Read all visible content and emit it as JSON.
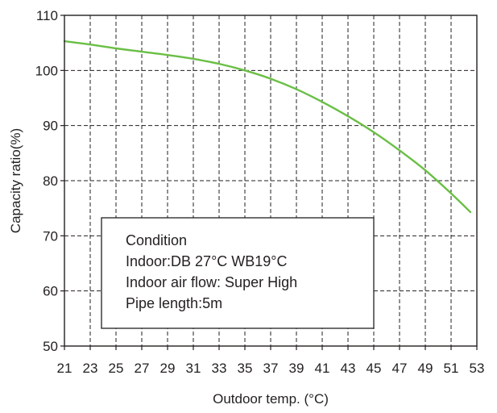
{
  "chart_data": {
    "type": "line",
    "xlabel": "Outdoor temp. (°C)",
    "ylabel": "Capacity ratio(%)",
    "xlim": [
      21,
      53
    ],
    "ylim": [
      50,
      110
    ],
    "x_ticks": [
      21,
      23,
      25,
      27,
      29,
      31,
      33,
      35,
      37,
      39,
      41,
      43,
      45,
      47,
      49,
      51,
      53
    ],
    "y_ticks": [
      50,
      60,
      70,
      80,
      90,
      100,
      110
    ],
    "grid": true,
    "series": [
      {
        "color": "#6abf45",
        "x": [
          21,
          23,
          25,
          27,
          29,
          31,
          33,
          35,
          37,
          39,
          41,
          43,
          45,
          47,
          49,
          51,
          52.5
        ],
        "y": [
          105.3,
          104.7,
          104.0,
          103.4,
          102.8,
          102.1,
          101.2,
          100.0,
          98.5,
          96.6,
          94.3,
          91.7,
          88.8,
          85.5,
          81.9,
          77.7,
          74.3
        ]
      }
    ],
    "annotation": {
      "lines": [
        "Condition",
        "Indoor:DB 27°C  WB19°C",
        "Indoor air flow: Super High",
        "Pipe length:5m"
      ]
    }
  }
}
